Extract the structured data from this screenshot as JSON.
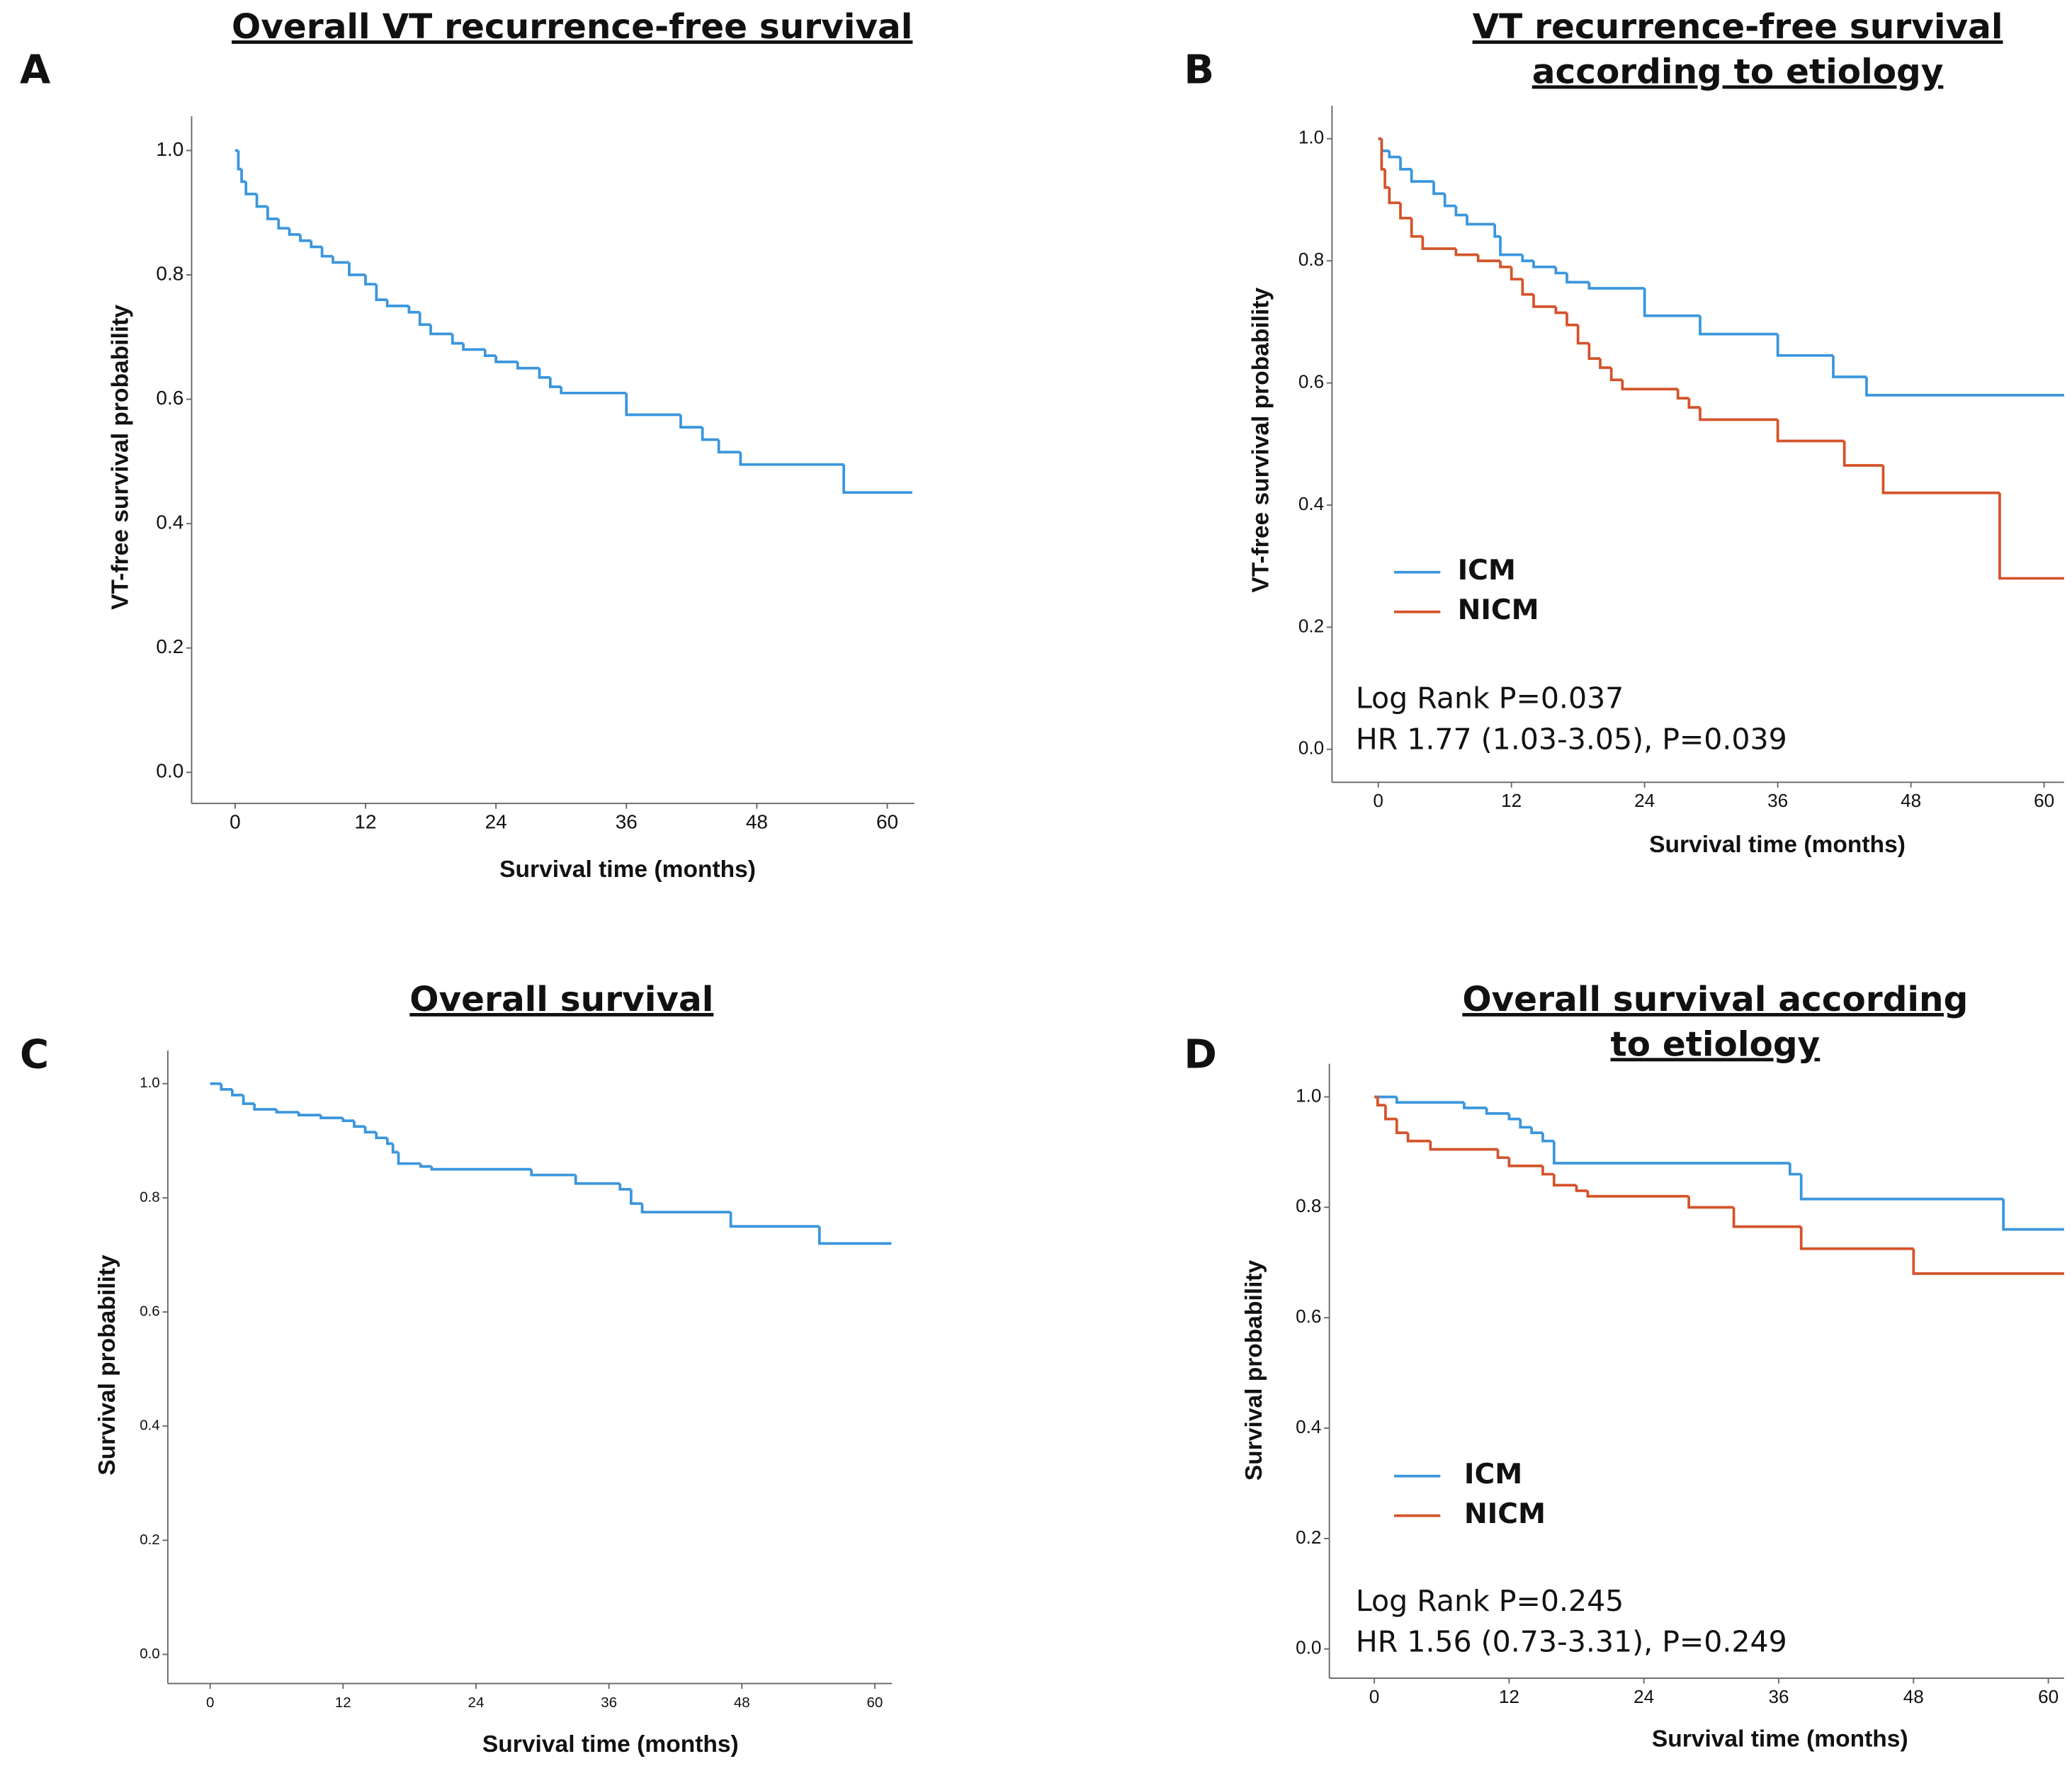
{
  "chart_data": [
    {
      "type": "line",
      "panel_label": "A",
      "title": [
        "Overall VT recurrence-free survival"
      ],
      "xlabel": "Survival time (months)",
      "ylabel": "VT-free survival probability",
      "xlim": [
        -4,
        62.5
      ],
      "ylim": [
        -0.05,
        1.055
      ],
      "xticks": [
        0,
        12,
        24,
        36,
        48,
        60
      ],
      "yticks": [
        {
          "value": 0,
          "label": "0.0"
        },
        0.2,
        0.4,
        0.6,
        0.8,
        {
          "value": 1,
          "label": "1.0"
        }
      ],
      "series": [
        {
          "color": "#3a96dd",
          "x": [
            0,
            0.3,
            0.6,
            1,
            2,
            3,
            4,
            5,
            6,
            7,
            8,
            9,
            10.5,
            12,
            13,
            14,
            16,
            17,
            18,
            20,
            21,
            23,
            24,
            26,
            28,
            29,
            30,
            36,
            41,
            43,
            44.5,
            46.5,
            56,
            62.3
          ],
          "values": [
            1.0,
            0.97,
            0.95,
            0.93,
            0.91,
            0.89,
            0.875,
            0.865,
            0.855,
            0.845,
            0.83,
            0.82,
            0.8,
            0.785,
            0.76,
            0.75,
            0.74,
            0.72,
            0.705,
            0.69,
            0.68,
            0.67,
            0.66,
            0.65,
            0.635,
            0.62,
            0.61,
            0.575,
            0.555,
            0.535,
            0.515,
            0.495,
            0.45,
            0.45
          ]
        }
      ]
    },
    {
      "type": "line",
      "panel_label": "B",
      "title": [
        "VT recurrence-free survival",
        "according to etiology"
      ],
      "xlabel": "Survival time (months)",
      "ylabel": "VT-free survival probability",
      "xlim": [
        -4.17,
        61.8
      ],
      "ylim": [
        -0.054,
        1.054
      ],
      "xticks": [
        0,
        12,
        24,
        36,
        48,
        60
      ],
      "yticks": [
        {
          "value": 0,
          "label": "0.0"
        },
        0.2,
        0.4,
        0.6,
        0.8,
        {
          "value": 1,
          "label": "1.0"
        }
      ],
      "series": [
        {
          "name": "ICM",
          "color": "#3a96dd",
          "x": [
            0,
            0.3,
            1,
            2,
            3,
            5,
            6,
            7,
            8,
            10.5,
            11,
            13,
            14,
            16,
            17,
            19,
            24,
            29,
            36,
            41,
            44,
            61.8
          ],
          "values": [
            1.0,
            0.98,
            0.97,
            0.95,
            0.93,
            0.91,
            0.89,
            0.875,
            0.86,
            0.84,
            0.81,
            0.8,
            0.79,
            0.78,
            0.765,
            0.755,
            0.71,
            0.68,
            0.645,
            0.61,
            0.58,
            0.58
          ]
        },
        {
          "name": "NICM",
          "color": "#d4532a",
          "x": [
            0,
            0.3,
            0.6,
            1,
            2,
            3,
            4,
            7,
            9,
            11,
            12,
            13,
            14,
            16,
            17,
            18,
            19,
            20,
            21,
            22,
            27,
            28,
            29,
            36,
            42,
            45.5,
            56,
            61.8
          ],
          "values": [
            1.0,
            0.95,
            0.92,
            0.895,
            0.87,
            0.84,
            0.82,
            0.81,
            0.8,
            0.79,
            0.77,
            0.745,
            0.725,
            0.715,
            0.695,
            0.665,
            0.64,
            0.625,
            0.605,
            0.59,
            0.575,
            0.56,
            0.54,
            0.505,
            0.465,
            0.42,
            0.28,
            0.28
          ]
        }
      ],
      "annotations": [
        "Log Rank P=0.037",
        "HR 1.77 (1.03-3.05), P=0.039"
      ]
    },
    {
      "type": "line",
      "panel_label": "C",
      "title": [
        "Overall survival"
      ],
      "xlabel": "Survival time (months)",
      "ylabel": "Survival probability",
      "xlim": [
        -3.82,
        61.55
      ],
      "ylim": [
        -0.051,
        1.058
      ],
      "xticks": [
        0,
        12,
        24,
        36,
        48,
        60
      ],
      "yticks": [
        {
          "value": 0,
          "label": "0.0"
        },
        0.2,
        0.4,
        0.6,
        0.8,
        {
          "value": 1,
          "label": "1.0"
        }
      ],
      "series": [
        {
          "color": "#3a96dd",
          "x": [
            0,
            1,
            2,
            3,
            4,
            6,
            8,
            10,
            12,
            13,
            14,
            15,
            16,
            16.5,
            17,
            19,
            20,
            29,
            33,
            37,
            38,
            39,
            47,
            55,
            61.5
          ],
          "values": [
            1.0,
            0.99,
            0.98,
            0.965,
            0.955,
            0.95,
            0.945,
            0.94,
            0.935,
            0.925,
            0.915,
            0.905,
            0.895,
            0.88,
            0.86,
            0.855,
            0.85,
            0.84,
            0.825,
            0.815,
            0.79,
            0.775,
            0.75,
            0.72,
            0.72
          ]
        }
      ]
    },
    {
      "type": "line",
      "panel_label": "D",
      "title": [
        "Overall survival according",
        "to etiology"
      ],
      "xlabel": "Survival time (months)",
      "ylabel": "Survival probability",
      "xlim": [
        -4,
        61.4
      ],
      "ylim": [
        -0.053,
        1.06
      ],
      "xticks": [
        0,
        12,
        24,
        36,
        48,
        60
      ],
      "yticks": [
        {
          "value": 0,
          "label": "0.0"
        },
        0.2,
        0.4,
        0.6,
        0.8,
        {
          "value": 1,
          "label": "1.0"
        }
      ],
      "series": [
        {
          "name": "ICM",
          "color": "#3a96dd",
          "x": [
            0,
            2,
            8,
            10,
            12,
            13,
            14,
            15,
            16,
            37,
            38,
            56,
            61.4
          ],
          "values": [
            1.0,
            0.99,
            0.98,
            0.97,
            0.96,
            0.945,
            0.935,
            0.92,
            0.88,
            0.86,
            0.815,
            0.76,
            0.76
          ]
        },
        {
          "name": "NICM",
          "color": "#d4532a",
          "x": [
            0,
            0.3,
            1,
            2,
            3,
            5,
            11,
            12,
            15,
            16,
            18,
            19,
            28,
            32,
            38,
            48,
            61.4
          ],
          "values": [
            1.0,
            0.985,
            0.96,
            0.935,
            0.92,
            0.905,
            0.89,
            0.875,
            0.86,
            0.84,
            0.83,
            0.82,
            0.8,
            0.765,
            0.725,
            0.68,
            0.68
          ]
        }
      ],
      "annotations": [
        "Log Rank P=0.245",
        "HR 1.56 (0.73-3.31), P=0.249"
      ]
    }
  ]
}
